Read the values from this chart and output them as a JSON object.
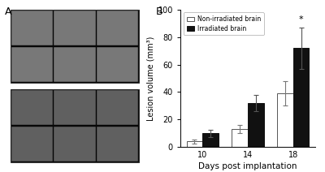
{
  "title_panel_a": "A",
  "title_panel_b": "B",
  "days": [
    10,
    14,
    18
  ],
  "non_irradiated_means": [
    4.0,
    13.0,
    39.0
  ],
  "non_irradiated_errors": [
    1.5,
    3.0,
    9.0
  ],
  "irradiated_means": [
    10.0,
    32.0,
    72.0
  ],
  "irradiated_errors": [
    2.5,
    6.0,
    15.0
  ],
  "ylabel": "Lesion volume (mm³)",
  "xlabel": "Days post implantation",
  "ylim": [
    0,
    100
  ],
  "yticks": [
    0,
    20,
    40,
    60,
    80,
    100
  ],
  "bar_width": 0.35,
  "non_irradiated_color": "white",
  "non_irradiated_edgecolor": "#555555",
  "irradiated_color": "#111111",
  "irradiated_edgecolor": "#111111",
  "legend_labels": [
    "Non-irradiated brain",
    "Irradiated brain"
  ],
  "significance_label": "*",
  "background_color": "white",
  "panel_a_bg": "#1a1a1a",
  "grid_rows": 2,
  "grid_cols": 3,
  "num_groups": 2
}
